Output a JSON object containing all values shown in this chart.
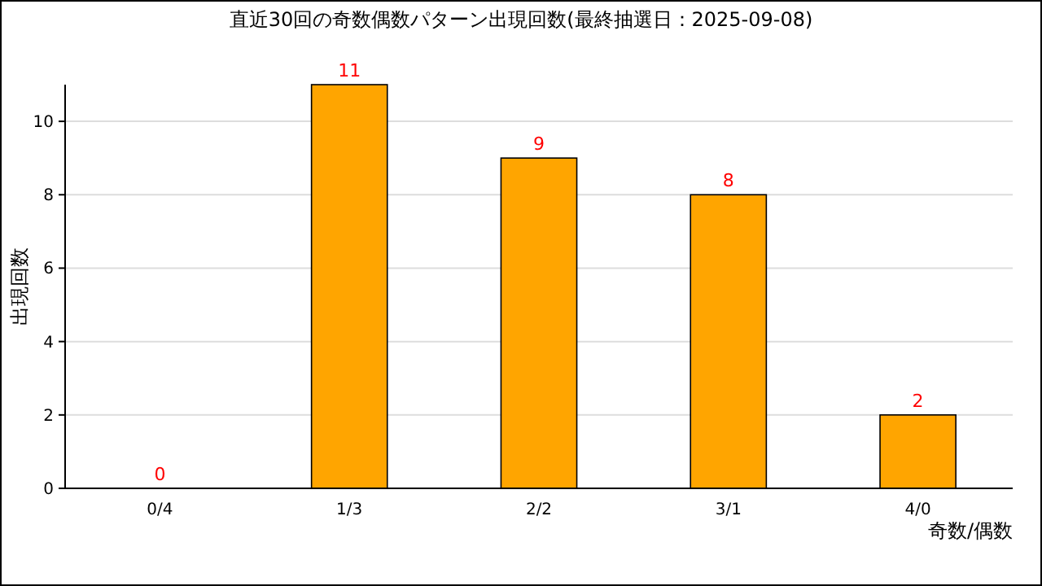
{
  "chart_data": {
    "type": "bar",
    "title": "直近30回の奇数偶数パターン出現回数(最終抽選日：2025-09-08)",
    "xlabel": "奇数/偶数",
    "ylabel": "出現回数",
    "categories": [
      "0/4",
      "1/3",
      "2/2",
      "3/1",
      "4/0"
    ],
    "values": [
      0,
      11,
      9,
      8,
      2
    ],
    "color": "#ffa500",
    "ylim": [
      0,
      11
    ],
    "yticks": [
      0,
      2,
      4,
      6,
      8,
      10
    ],
    "grid": "y",
    "data_labels": true
  }
}
